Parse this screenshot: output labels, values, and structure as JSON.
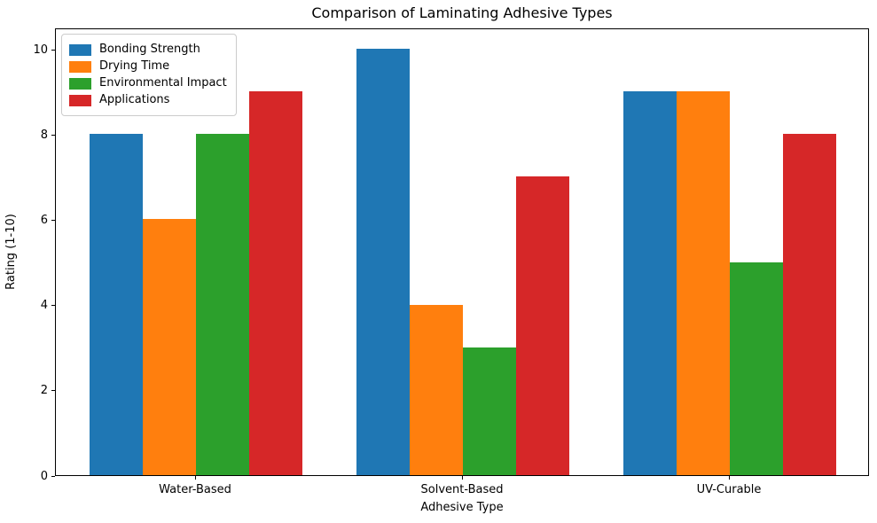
{
  "chart_data": {
    "type": "bar",
    "title": "Comparison of Laminating Adhesive Types",
    "xlabel": "Adhesive Type",
    "ylabel": "Rating (1-10)",
    "categories": [
      "Water-Based",
      "Solvent-Based",
      "UV-Curable"
    ],
    "series": [
      {
        "name": "Bonding Strength",
        "color": "#1f77b4",
        "values": [
          8,
          10,
          9
        ]
      },
      {
        "name": "Drying Time",
        "color": "#ff7f0e",
        "values": [
          6,
          4,
          9
        ]
      },
      {
        "name": "Environmental Impact",
        "color": "#2ca02c",
        "values": [
          8,
          3,
          5
        ]
      },
      {
        "name": "Applications",
        "color": "#d62728",
        "values": [
          9,
          7,
          8
        ]
      }
    ],
    "bar_width": 0.2,
    "xlim": [
      -0.525,
      2.525
    ],
    "ylim": [
      0,
      10.5
    ],
    "yticks": [
      0,
      2,
      4,
      6,
      8,
      10
    ],
    "legend_position": "upper left",
    "grid": false,
    "colors": {
      "spine": "#000000",
      "background": "#ffffff",
      "text": "#000000"
    }
  }
}
